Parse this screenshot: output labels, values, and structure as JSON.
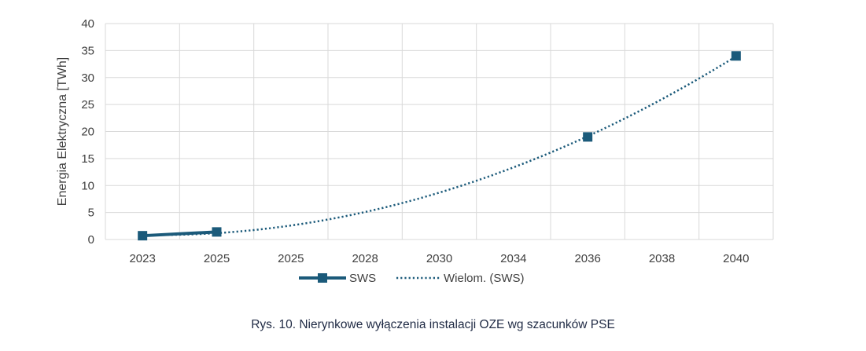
{
  "caption": "Rys. 10. Nierynkowe wyłączenia instalacji OZE wg szacunków PSE",
  "chart_data": {
    "type": "line",
    "categories": [
      "2023",
      "2025",
      "2025",
      "2028",
      "2030",
      "2034",
      "2036",
      "2038",
      "2040"
    ],
    "ylabel": "Energia Elektryczna [TWh]",
    "ylim": [
      0,
      40
    ],
    "yticks": [
      0,
      5,
      10,
      15,
      20,
      25,
      30,
      35,
      40
    ],
    "grid": true,
    "legend_position": "bottom",
    "series": [
      {
        "name": "SWS",
        "style": "solid-line-square-markers",
        "color": "#1b5a7a",
        "points": [
          {
            "category_index": 0,
            "value": 0.7
          },
          {
            "category_index": 1,
            "value": 1.4
          },
          {
            "category_index": 6,
            "value": 19
          },
          {
            "category_index": 8,
            "value": 34
          }
        ],
        "line_segment_indices": [
          0,
          1
        ]
      },
      {
        "name": "Wielom. (SWS)",
        "style": "dotted-trendline",
        "color": "#1b5a7a",
        "polynomial_degree": 2
      }
    ]
  }
}
